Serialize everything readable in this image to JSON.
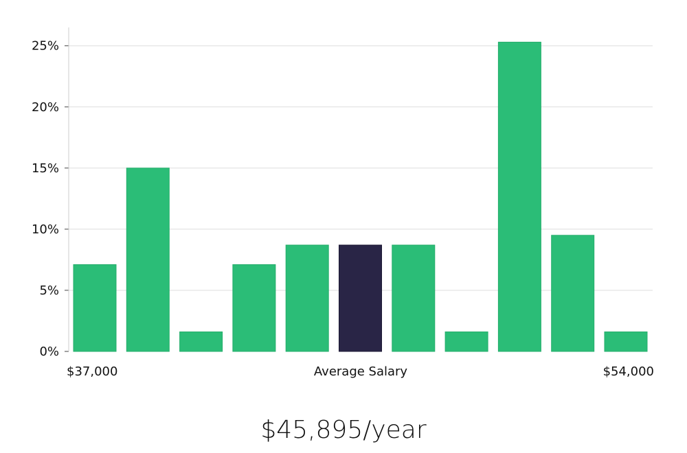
{
  "chart_data": {
    "type": "bar",
    "title": "",
    "xlabel": "Average Salary",
    "ylabel": "",
    "x_range_labels": {
      "min": "$37,000",
      "max": "$54,000"
    },
    "yticks": [
      "0%",
      "5%",
      "10%",
      "15%",
      "20%",
      "25%"
    ],
    "ytick_values": [
      0,
      5,
      10,
      15,
      20,
      25
    ],
    "ylim": [
      0,
      26.5
    ],
    "grid": true,
    "values": [
      7.1,
      15.0,
      1.6,
      7.1,
      8.7,
      8.7,
      8.7,
      1.6,
      25.3,
      9.5,
      1.6
    ],
    "highlight_index": 5,
    "colors": {
      "bar": "#2bbd77",
      "highlight": "#292546",
      "grid": "#dddddd",
      "axis": "#cccccc"
    }
  },
  "summary": {
    "salary": "$45,895/year"
  }
}
